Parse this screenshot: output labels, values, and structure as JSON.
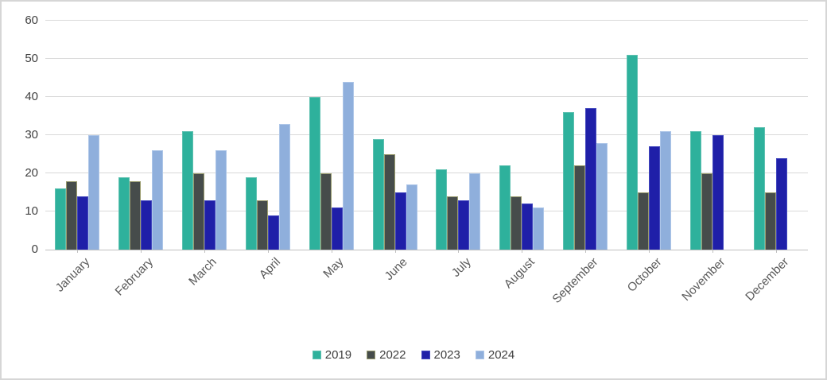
{
  "chart_data": {
    "type": "bar",
    "title": "",
    "categories": [
      "January",
      "February",
      "March",
      "April",
      "May",
      "June",
      "July",
      "August",
      "September",
      "October",
      "November",
      "December"
    ],
    "series": [
      {
        "name": "2019",
        "color": "#2EB19C",
        "border_color": "#5FC1B1",
        "values": [
          16,
          19,
          31,
          19,
          40,
          29,
          21,
          22,
          36,
          51,
          31,
          32
        ]
      },
      {
        "name": "2022",
        "color": "#464C4B",
        "border_color": "#9A9C6E",
        "values": [
          18,
          18,
          20,
          13,
          20,
          25,
          14,
          14,
          22,
          15,
          20,
          15
        ]
      },
      {
        "name": "2023",
        "color": "#1F1FA8",
        "border_color": "#4348BE",
        "values": [
          14,
          13,
          13,
          9,
          11,
          15,
          13,
          12,
          37,
          27,
          30,
          24
        ]
      },
      {
        "name": "2024",
        "color": "#8FAFDC",
        "border_color": "#AEC6E8",
        "values": [
          30,
          26,
          26,
          33,
          44,
          17,
          20,
          11,
          28,
          31,
          null,
          null
        ]
      }
    ],
    "xlabel": "",
    "ylabel": "",
    "ylim": [
      0,
      60
    ],
    "y_tick_step": 10,
    "y_tick_labels": [
      "0",
      "10",
      "20",
      "30",
      "40",
      "50",
      "60"
    ],
    "grid": true,
    "legend": {
      "position": "bottom",
      "entries": [
        "2019",
        "2022",
        "2023",
        "2024"
      ]
    },
    "style_colors": {
      "gridline": "#D9D9D9",
      "axis_line": "#BFBFBF",
      "y_label_text": "#404040",
      "x_label_text": "#595959",
      "legend_text": "#404040",
      "canvas_border": "#D6D6D6",
      "background": "#FFFFFF"
    }
  }
}
